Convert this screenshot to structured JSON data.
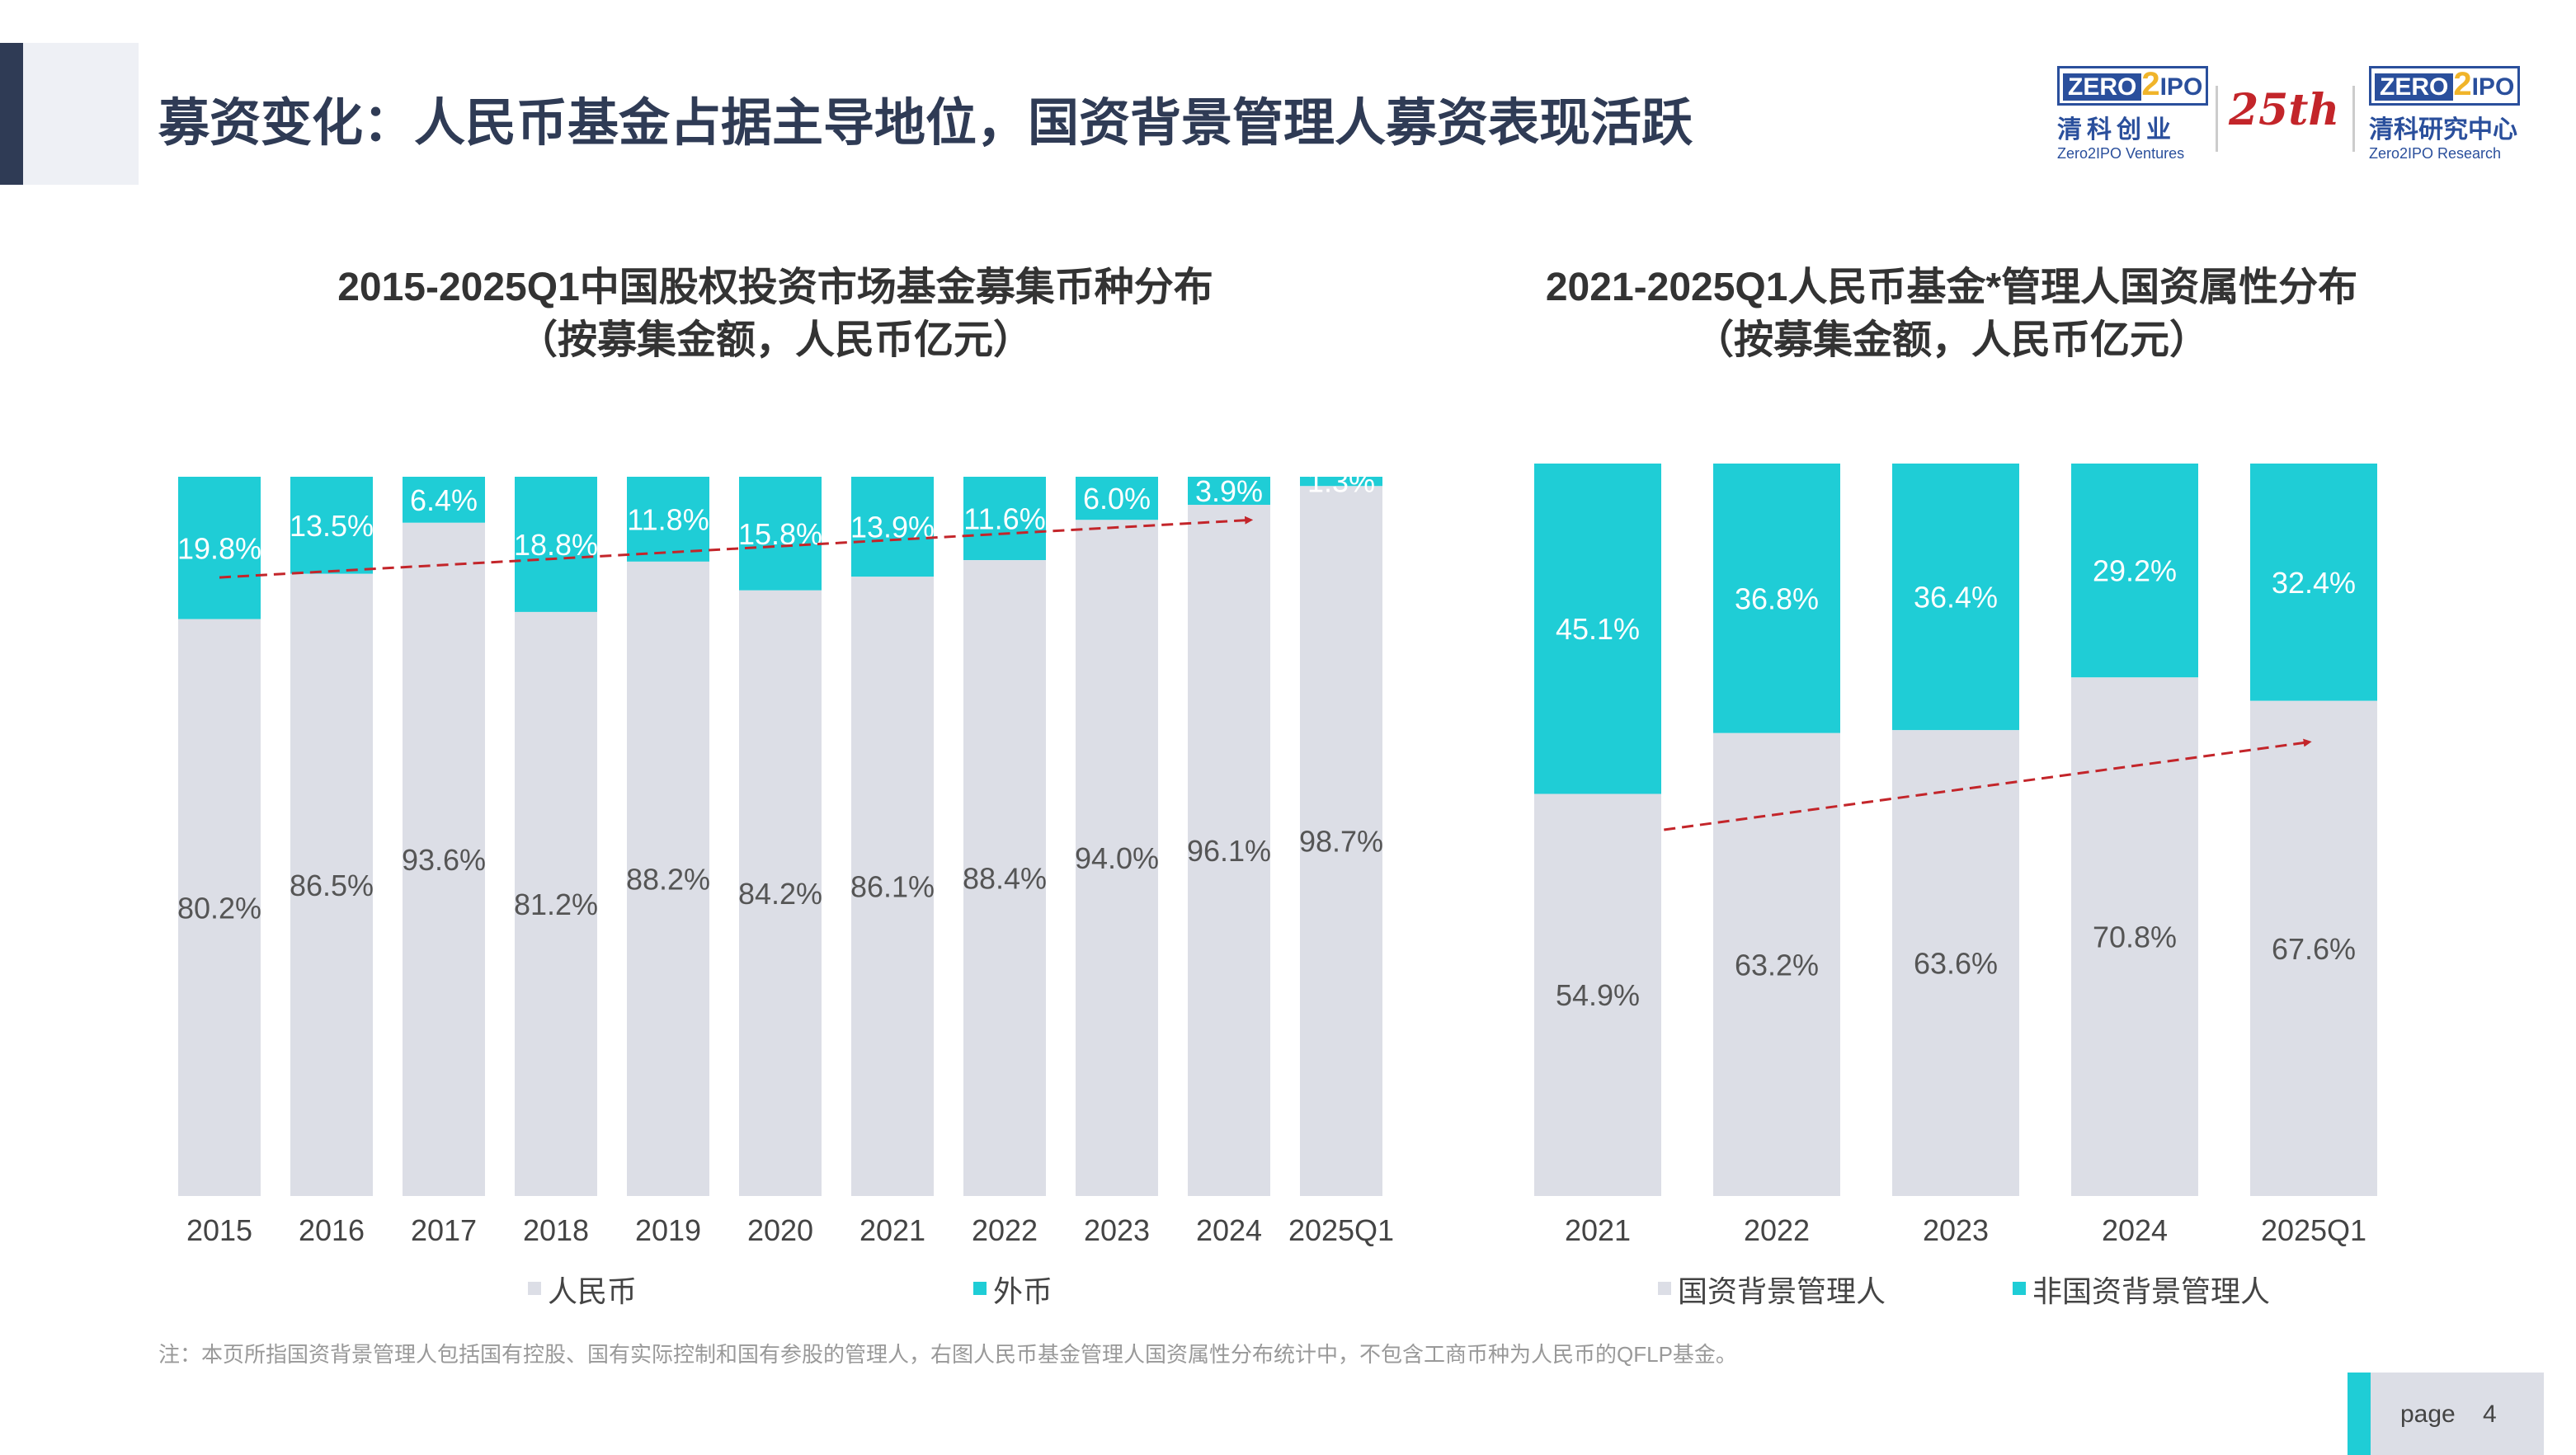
{
  "header": {
    "title": "募资变化：人民币基金占据主导地位，国资背景管理人募资表现活跃"
  },
  "logos": {
    "ventures": {
      "mark_left": "ZERO",
      "mark_two": "2",
      "mark_right": "IPO",
      "cn": "清科创业",
      "en": "Zero2IPO Ventures"
    },
    "anniversary": "25th",
    "research": {
      "mark_left": "ZERO",
      "mark_two": "2",
      "mark_right": "IPO",
      "cn": "清科研究中心",
      "en": "Zero2IPO Research"
    }
  },
  "colors": {
    "teal": "#1fcdd6",
    "gray": "#dcdee6",
    "arrow": "#c3252a",
    "title": "#2f3b55"
  },
  "chart_data": [
    {
      "type": "bar",
      "stacked": true,
      "percent": true,
      "title": "2015-2025Q1中国股权投资市场基金募集币种分布",
      "subtitle": "（按募集金额，人民币亿元）",
      "categories": [
        "2015",
        "2016",
        "2017",
        "2018",
        "2019",
        "2020",
        "2021",
        "2022",
        "2023",
        "2024",
        "2025Q1"
      ],
      "series": [
        {
          "name": "人民币",
          "color": "#dcdee6",
          "values": [
            80.2,
            86.5,
            93.6,
            81.2,
            88.2,
            84.2,
            86.1,
            88.4,
            94.0,
            96.1,
            98.7
          ],
          "labels": [
            "80.2%",
            "86.5%",
            "93.6%",
            "81.2%",
            "88.2%",
            "84.2%",
            "86.1%",
            "88.4%",
            "94.0%",
            "96.1%",
            "98.7%"
          ]
        },
        {
          "name": "外币",
          "color": "#1fcdd6",
          "values": [
            19.8,
            13.5,
            6.4,
            18.8,
            11.8,
            15.8,
            13.9,
            11.6,
            6.0,
            3.9,
            1.3
          ],
          "labels": [
            "19.8%",
            "13.5%",
            "6.4%",
            "18.8%",
            "11.8%",
            "15.8%",
            "13.9%",
            "11.6%",
            "6.0%",
            "3.9%",
            "1.3%"
          ]
        }
      ],
      "ylim": [
        0,
        100
      ],
      "legend": "bottom",
      "trend_arrow": true
    },
    {
      "type": "bar",
      "stacked": true,
      "percent": true,
      "title": "2021-2025Q1人民币基金*管理人国资属性分布",
      "subtitle": "（按募集金额，人民币亿元）",
      "categories": [
        "2021",
        "2022",
        "2023",
        "2024",
        "2025Q1"
      ],
      "series": [
        {
          "name": "国资背景管理人",
          "color": "#dcdee6",
          "values": [
            54.9,
            63.2,
            63.6,
            70.8,
            67.6
          ],
          "labels": [
            "54.9%",
            "63.2%",
            "63.6%",
            "70.8%",
            "67.6%"
          ]
        },
        {
          "name": "非国资背景管理人",
          "color": "#1fcdd6",
          "values": [
            45.1,
            36.8,
            36.4,
            29.2,
            32.4
          ],
          "labels": [
            "45.1%",
            "36.8%",
            "36.4%",
            "29.2%",
            "32.4%"
          ]
        }
      ],
      "ylim": [
        0,
        100
      ],
      "legend": "bottom",
      "trend_arrow": true
    }
  ],
  "footnote": "注：本页所指国资背景管理人包括国有控股、国有实际控制和国有参股的管理人，右图人民币基金管理人国资属性分布统计中，不包含工商币种为人民币的QFLP基金。",
  "page": {
    "label": "page",
    "number": "4"
  }
}
